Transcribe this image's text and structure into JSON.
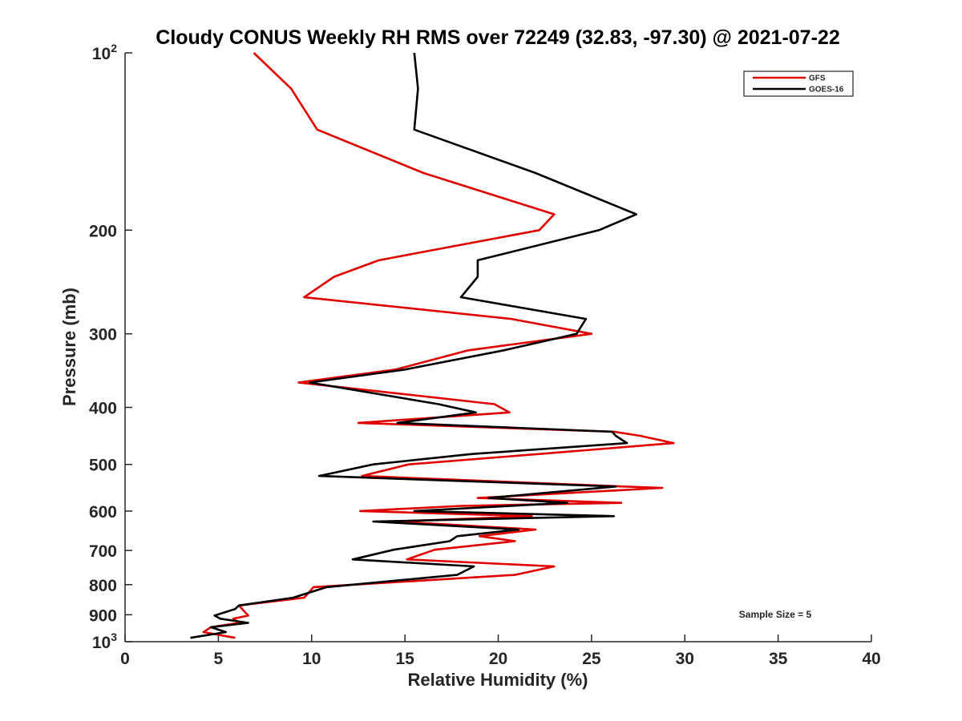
{
  "chart_data": {
    "type": "line",
    "title": "Cloudy CONUS Weekly RH RMS over 72249 (32.83, -97.30) @ 2021-07-22",
    "xlabel": "Relative Humidity (%)",
    "ylabel": "Pressure (mb)",
    "xlim": [
      0,
      40
    ],
    "ylim": [
      100,
      1000
    ],
    "y_scale": "log",
    "y_reversed": true,
    "x_ticks": [
      0,
      5,
      10,
      15,
      20,
      25,
      30,
      35,
      40
    ],
    "y_ticks": [
      {
        "value": 100,
        "label": "10",
        "sup": "2"
      },
      {
        "value": 200,
        "label": "200"
      },
      {
        "value": 300,
        "label": "300"
      },
      {
        "value": 400,
        "label": "400"
      },
      {
        "value": 500,
        "label": "500"
      },
      {
        "value": 600,
        "label": "600"
      },
      {
        "value": 700,
        "label": "700"
      },
      {
        "value": 800,
        "label": "800"
      },
      {
        "value": 900,
        "label": "900"
      },
      {
        "value": 1000,
        "label": "10",
        "sup": "3"
      }
    ],
    "grid": false,
    "legend_position": "top-right",
    "annotation": "Sample Size = 5",
    "series": [
      {
        "name": "GFS",
        "color": "#e00000",
        "points": [
          [
            6.9,
            100
          ],
          [
            8.9,
            115
          ],
          [
            10.3,
            135
          ],
          [
            16,
            160
          ],
          [
            23,
            188
          ],
          [
            22.2,
            200
          ],
          [
            13.6,
            225
          ],
          [
            11.2,
            240
          ],
          [
            9.6,
            260
          ],
          [
            20.7,
            283
          ],
          [
            25,
            300
          ],
          [
            18.4,
            320
          ],
          [
            14.5,
            345
          ],
          [
            9.3,
            363
          ],
          [
            19.8,
            395
          ],
          [
            20.6,
            408
          ],
          [
            12.5,
            425
          ],
          [
            26.2,
            440
          ],
          [
            27.6,
            447
          ],
          [
            29.4,
            460
          ],
          [
            22.2,
            480
          ],
          [
            15.2,
            500
          ],
          [
            12.7,
            523
          ],
          [
            26.7,
            545
          ],
          [
            28.8,
            548
          ],
          [
            18.9,
            570
          ],
          [
            26.6,
            581
          ],
          [
            18,
            588
          ],
          [
            12.6,
            600
          ],
          [
            21.8,
            612
          ],
          [
            14.5,
            625
          ],
          [
            22,
            645
          ],
          [
            19,
            662
          ],
          [
            20.9,
            675
          ],
          [
            16.6,
            698
          ],
          [
            15.1,
            725
          ],
          [
            23,
            745
          ],
          [
            20.9,
            770
          ],
          [
            10.1,
            808
          ],
          [
            9.6,
            842
          ],
          [
            6.1,
            868
          ],
          [
            6.6,
            903
          ],
          [
            5.8,
            914
          ],
          [
            6.1,
            929
          ],
          [
            4.6,
            945
          ],
          [
            4.2,
            963
          ],
          [
            5.9,
            985
          ]
        ]
      },
      {
        "name": "GOES-16",
        "color": "#000000",
        "points": [
          [
            15.5,
            100
          ],
          [
            15.7,
            115
          ],
          [
            15.5,
            135
          ],
          [
            22,
            160
          ],
          [
            27.4,
            188
          ],
          [
            25.4,
            200
          ],
          [
            18.9,
            225
          ],
          [
            18.9,
            240
          ],
          [
            18,
            260
          ],
          [
            24.7,
            283
          ],
          [
            24.2,
            300
          ],
          [
            20.3,
            320
          ],
          [
            15,
            345
          ],
          [
            9.9,
            363
          ],
          [
            16.8,
            395
          ],
          [
            18.8,
            408
          ],
          [
            14.6,
            425
          ],
          [
            26.1,
            440
          ],
          [
            26.3,
            447
          ],
          [
            26.9,
            460
          ],
          [
            18.6,
            480
          ],
          [
            13.3,
            500
          ],
          [
            10.4,
            523
          ],
          [
            26.3,
            545
          ],
          [
            19.5,
            570
          ],
          [
            23.7,
            581
          ],
          [
            15.5,
            600
          ],
          [
            26.2,
            612
          ],
          [
            13.3,
            625
          ],
          [
            21.1,
            645
          ],
          [
            17.8,
            662
          ],
          [
            17.4,
            675
          ],
          [
            14.4,
            698
          ],
          [
            12.2,
            725
          ],
          [
            18.7,
            745
          ],
          [
            17.8,
            770
          ],
          [
            10.8,
            808
          ],
          [
            9,
            842
          ],
          [
            6.1,
            868
          ],
          [
            5.9,
            880
          ],
          [
            4.8,
            903
          ],
          [
            5.1,
            914
          ],
          [
            6.6,
            929
          ],
          [
            4.6,
            945
          ],
          [
            5.4,
            963
          ],
          [
            3.5,
            985
          ]
        ]
      }
    ]
  }
}
